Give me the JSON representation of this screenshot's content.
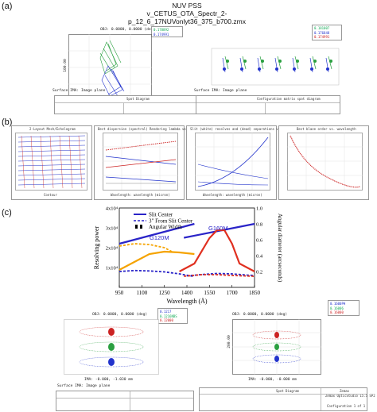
{
  "panel_labels": {
    "a": "(a)",
    "b": "(b)",
    "c": "(c)"
  },
  "panel_a": {
    "title_lines": [
      "NUV PSS",
      "v_CETUS_OTA_Spectr_2-",
      "p_12_6_17NUVonlyt36_375_b700.zmx"
    ],
    "left": {
      "obj_label": "OBJ: 0.0000, 0.0000 (deg)",
      "ima_label": "IMA: -15.086, -8.173 mm",
      "scale_label": "100.00",
      "legend": [
        "0.178892",
        "0.174991"
      ],
      "surface_label": "Surface IMA: Image plane",
      "footer_title": "Spot Diagram"
    },
    "right": {
      "legend": [
        "0.181007",
        "0.176848",
        "0.174991"
      ],
      "surface_label": "Surface IMA: Image plane",
      "footer_title": "Configuration matrix spot diagram"
    }
  },
  "panel_b": {
    "chart_titles": [
      "2-Layout Mech/Echelogram",
      "Best dispersion (spectral) Rendering lambda vs wavelength",
      "Slit (white) resolves and (dead) separations vs wavelength",
      "Best blaze order vs. wavelength"
    ],
    "chart1_xlabel": "Contour",
    "chart2_xlabel": "Wavelength: wavelength (micron)",
    "chart3_xlabel": "Wavelength: wavelength (micron)"
  },
  "panel_c": {
    "legend": {
      "slit_center": "Slit Center",
      "from_center": "3\" From Slit Center",
      "angular_width": "Angular Width"
    },
    "labels": {
      "g120m": "G120M",
      "g160m": "G160M"
    },
    "bottom_left": {
      "obj": "OBJ: 0.0000, 0.0000 (deg)",
      "ima": "IMA: -0.000, -1.030 mm",
      "surface": "Surface IMA: Image plane",
      "legend": [
        "0.1217",
        "0.1216NBS",
        "0.12000"
      ]
    },
    "bottom_right": {
      "obj": "OBJ: 0.0000, 0.0000 (deg)",
      "ima": "IMA: -0.000, -0.000 mm",
      "scale": "200.00",
      "legend": [
        "0.1600PH",
        "0.16006",
        "0.16000"
      ]
    },
    "footer_right": {
      "title": "Spot Diagram",
      "company": "Zemax",
      "product": "Zemax OpticStudio 15.5 SP2",
      "config": "Configuration 1 of 1"
    }
  },
  "chart_data": {
    "type": "line",
    "xlabel": "Wavelength (Å)",
    "ylabel": "Resolving power",
    "y2label": "Angular diameter (arcseconds)",
    "xlim": [
      950,
      1850
    ],
    "x_ticks": [
      950,
      1100,
      1250,
      1400,
      1550,
      1700,
      1850
    ],
    "y_ticks": [
      "1x10⁴",
      "2x10⁴",
      "3x10⁴",
      "4x10⁴"
    ],
    "y2_ticks": [
      "0.2",
      "0.4",
      "0.6",
      "0.8",
      "1.0"
    ],
    "ylim": [
      0,
      40000
    ],
    "y2lim": [
      0,
      1.0
    ],
    "series": [
      {
        "name": "Slit Center",
        "group": "G120M",
        "color": "#2a24c8",
        "style": "solid",
        "x": [
          950,
          1450
        ],
        "y": [
          22000,
          32000
        ]
      },
      {
        "name": "Slit Center",
        "group": "G160M",
        "color": "#2a24c8",
        "style": "solid",
        "x": [
          1380,
          1850
        ],
        "y": [
          25000,
          32000
        ]
      },
      {
        "name": "3\" From Slit Center",
        "group": "G120M",
        "color": "#2a24c8",
        "style": "dashed",
        "x": [
          950,
          1050,
          1150,
          1250,
          1350,
          1450
        ],
        "y": [
          8000,
          8500,
          8300,
          7800,
          6800,
          5500
        ]
      },
      {
        "name": "3\" From Slit Center",
        "group": "G160M",
        "color": "#2a24c8",
        "style": "dashed",
        "x": [
          1400,
          1500,
          1600,
          1700,
          1800,
          1850
        ],
        "y": [
          5800,
          6500,
          7000,
          6800,
          6200,
          6000
        ]
      },
      {
        "name": "Angular Width",
        "group": "G120M",
        "color": "#f5a300",
        "style": "dashed",
        "axis": "right",
        "x": [
          950,
          1050,
          1150,
          1250,
          1300
        ],
        "y": [
          0.52,
          0.55,
          0.54,
          0.5,
          0.45
        ]
      },
      {
        "name": "Angular Width",
        "group": "G120M",
        "color": "#f5a300",
        "style": "solid",
        "axis": "right",
        "x": [
          950,
          1050,
          1150,
          1250,
          1350,
          1450
        ],
        "y": [
          0.22,
          0.32,
          0.42,
          0.45,
          0.44,
          0.42
        ]
      },
      {
        "name": "Angular Width",
        "group": "G160M",
        "color": "#e03020",
        "style": "solid",
        "axis": "right",
        "x": [
          1350,
          1450,
          1550,
          1600,
          1650,
          1700,
          1750,
          1850
        ],
        "y": [
          0.2,
          0.3,
          0.62,
          0.72,
          0.72,
          0.55,
          0.3,
          0.2
        ]
      },
      {
        "name": "Angular Width",
        "group": "G160M",
        "color": "#e03020",
        "style": "dashed",
        "axis": "right",
        "x": [
          1380,
          1500,
          1600,
          1700,
          1850
        ],
        "y": [
          0.14,
          0.16,
          0.16,
          0.15,
          0.14
        ]
      }
    ]
  }
}
